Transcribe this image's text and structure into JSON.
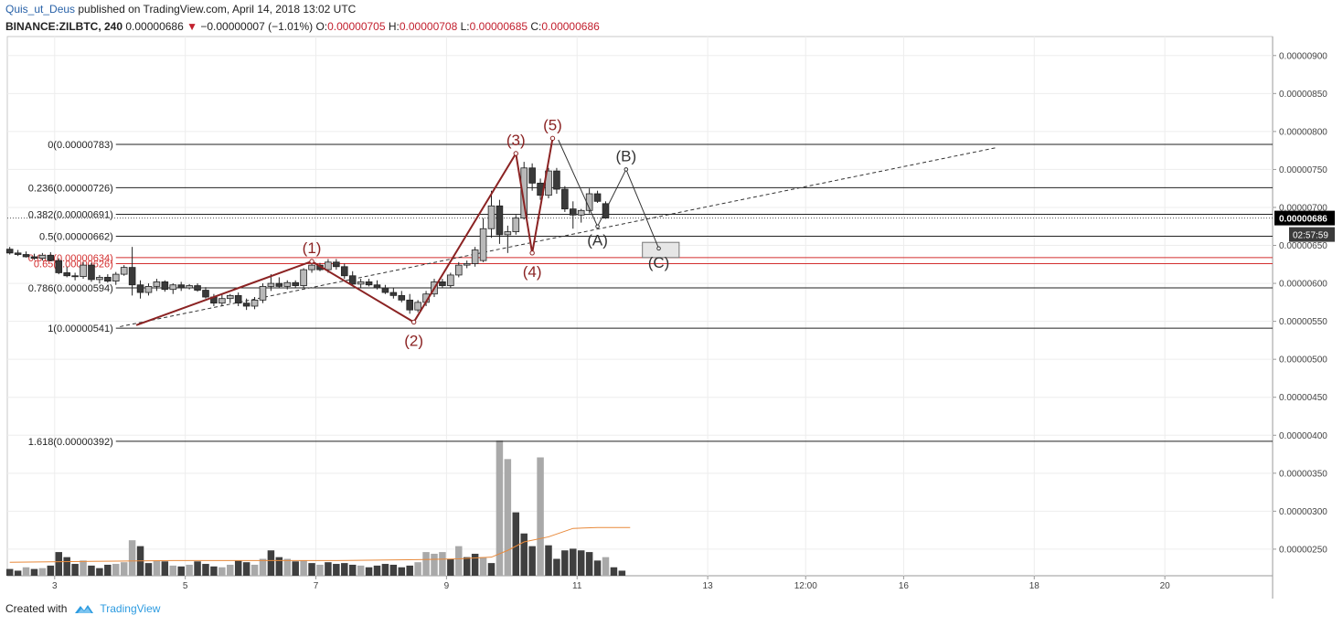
{
  "header": {
    "user": "Quis_ut_Deus",
    "published_text": " published on TradingView.com, April 14, 2018 13:02 UTC",
    "symbol": "BINANCE:ZILBTC, 240",
    "last": "0.00000686",
    "change": "−0.00000007 (−1.01%)",
    "o_label": "O:",
    "o": "0.00000705",
    "h_label": "H:",
    "h": "0.00000708",
    "l_label": "L:",
    "l": "0.00000685",
    "c_label": "C:",
    "c": "0.00000686"
  },
  "footer": {
    "created_with": "Created with",
    "brand": "TradingView"
  },
  "colors": {
    "up": "#b9b9b9",
    "down": "#3a3a3a",
    "wave": "#8b2323",
    "fib_red": "#d32f2f",
    "ma": "#e8893a",
    "price_badge": "#000000",
    "timer_badge": "#3b3b3b"
  },
  "chart_data": {
    "type": "candlestick",
    "timeframe": "240",
    "y_range": [
      2.15e-06,
      9.25e-06
    ],
    "x_range": [
      -0.3,
      154.7
    ],
    "y_ticks": [
      "0.00000900",
      "0.00000850",
      "0.00000800",
      "0.00000750",
      "0.00000700",
      "0.00000650",
      "0.00000600",
      "0.00000550",
      "0.00000500",
      "0.00000450",
      "0.00000400",
      "0.00000350",
      "0.00000300",
      "0.00000250"
    ],
    "x_ticks": [
      {
        "label": "3",
        "i": 5.5
      },
      {
        "label": "5",
        "i": 21.5
      },
      {
        "label": "7",
        "i": 37.5
      },
      {
        "label": "9",
        "i": 53.5
      },
      {
        "label": "11",
        "i": 69.5
      },
      {
        "label": "13",
        "i": 85.5
      },
      {
        "label": "12:00",
        "i": 97.5
      },
      {
        "label": "16",
        "i": 109.5
      },
      {
        "label": "18",
        "i": 125.5
      },
      {
        "label": "20",
        "i": 141.5
      }
    ],
    "last_price": "0.00000686",
    "countdown": "02:57:59",
    "candles": [
      [
        6.45e-06,
        6.48e-06,
        6.38e-06,
        6.4e-06
      ],
      [
        6.4e-06,
        6.44e-06,
        6.36e-06,
        6.38e-06
      ],
      [
        6.38e-06,
        6.42e-06,
        6.34e-06,
        6.35e-06
      ],
      [
        6.35e-06,
        6.39e-06,
        6.31e-06,
        6.33e-06
      ],
      [
        6.33e-06,
        6.4e-06,
        6.3e-06,
        6.37e-06
      ],
      [
        6.37e-06,
        6.41e-06,
        6.29e-06,
        6.3e-06
      ],
      [
        6.3e-06,
        6.33e-06,
        6.12e-06,
        6.14e-06
      ],
      [
        6.14e-06,
        6.22e-06,
        6.08e-06,
        6.1e-06
      ],
      [
        6.1e-06,
        6.14e-06,
        6.04e-06,
        6.09e-06
      ],
      [
        6.09e-06,
        6.28e-06,
        6.06e-06,
        6.24e-06
      ],
      [
        6.24e-06,
        6.27e-06,
        6.02e-06,
        6.05e-06
      ],
      [
        6.05e-06,
        6.11e-06,
        6e-06,
        6.08e-06
      ],
      [
        6.08e-06,
        6.12e-06,
        6.01e-06,
        6.03e-06
      ],
      [
        6.03e-06,
        6.15e-06,
        5.98e-06,
        6.12e-06
      ],
      [
        6.12e-06,
        6.24e-06,
        6.1e-06,
        6.21e-06
      ],
      [
        6.21e-06,
        6.48e-06,
        5.84e-06,
        5.98e-06
      ],
      [
        5.98e-06,
        6.04e-06,
        5.8e-06,
        5.88e-06
      ],
      [
        5.88e-06,
        6e-06,
        5.84e-06,
        5.96e-06
      ],
      [
        5.96e-06,
        6.06e-06,
        5.9e-06,
        6.02e-06
      ],
      [
        6.02e-06,
        6.04e-06,
        5.89e-06,
        5.92e-06
      ],
      [
        5.92e-06,
        6e-06,
        5.86e-06,
        5.98e-06
      ],
      [
        5.98e-06,
        6.02e-06,
        5.9e-06,
        5.94e-06
      ],
      [
        5.94e-06,
        5.99e-06,
        5.92e-06,
        5.97e-06
      ],
      [
        5.97e-06,
        6e-06,
        5.89e-06,
        5.91e-06
      ],
      [
        5.91e-06,
        5.95e-06,
        5.8e-06,
        5.82e-06
      ],
      [
        5.82e-06,
        5.86e-06,
        5.7e-06,
        5.74e-06
      ],
      [
        5.74e-06,
        5.85e-06,
        5.7e-06,
        5.8e-06
      ],
      [
        5.8e-06,
        5.86e-06,
        5.74e-06,
        5.84e-06
      ],
      [
        5.84e-06,
        5.88e-06,
        5.7e-06,
        5.74e-06
      ],
      [
        5.74e-06,
        5.8e-06,
        5.65e-06,
        5.7e-06
      ],
      [
        5.7e-06,
        5.82e-06,
        5.66e-06,
        5.78e-06
      ],
      [
        5.78e-06,
        6e-06,
        5.74e-06,
        5.96e-06
      ],
      [
        5.96e-06,
        6.12e-06,
        5.9e-06,
        6e-06
      ],
      [
        6e-06,
        6.08e-06,
        5.94e-06,
        5.96e-06
      ],
      [
        5.96e-06,
        6.04e-06,
        5.92e-06,
        6.01e-06
      ],
      [
        6.01e-06,
        6.04e-06,
        5.94e-06,
        5.97e-06
      ],
      [
        5.97e-06,
        6.2e-06,
        5.94e-06,
        6.18e-06
      ],
      [
        6.18e-06,
        6.28e-06,
        6.14e-06,
        6.24e-06
      ],
      [
        6.24e-06,
        6.27e-06,
        6.16e-06,
        6.18e-06
      ],
      [
        6.18e-06,
        6.32e-06,
        6.14e-06,
        6.28e-06
      ],
      [
        6.28e-06,
        6.32e-06,
        6.18e-06,
        6.22e-06
      ],
      [
        6.22e-06,
        6.26e-06,
        6.06e-06,
        6.1e-06
      ],
      [
        6.1e-06,
        6.16e-06,
        5.96e-06,
        5.99e-06
      ],
      [
        5.99e-06,
        6.06e-06,
        5.94e-06,
        6.02e-06
      ],
      [
        6.02e-06,
        6.06e-06,
        5.96e-06,
        5.98e-06
      ],
      [
        5.98e-06,
        6.04e-06,
        5.92e-06,
        5.94e-06
      ],
      [
        5.94e-06,
        5.98e-06,
        5.86e-06,
        5.88e-06
      ],
      [
        5.88e-06,
        5.94e-06,
        5.8e-06,
        5.84e-06
      ],
      [
        5.84e-06,
        5.9e-06,
        5.75e-06,
        5.78e-06
      ],
      [
        5.78e-06,
        5.86e-06,
        5.6e-06,
        5.65e-06
      ],
      [
        5.65e-06,
        5.78e-06,
        5.62e-06,
        5.75e-06
      ],
      [
        5.75e-06,
        5.9e-06,
        5.7e-06,
        5.86e-06
      ],
      [
        5.86e-06,
        6.06e-06,
        5.82e-06,
        6.02e-06
      ],
      [
        6.02e-06,
        6.06e-06,
        5.94e-06,
        5.97e-06
      ],
      [
        5.97e-06,
        6.14e-06,
        5.94e-06,
        6.11e-06
      ],
      [
        6.11e-06,
        6.28e-06,
        6.08e-06,
        6.24e-06
      ],
      [
        6.24e-06,
        6.3e-06,
        6.2e-06,
        6.26e-06
      ],
      [
        6.26e-06,
        6.48e-06,
        6.22e-06,
        6.44e-06
      ],
      [
        6.3e-06,
        6.86e-06,
        6.28e-06,
        6.72e-06
      ],
      [
        6.72e-06,
        7.22e-06,
        6.6e-06,
        7.02e-06
      ],
      [
        7.02e-06,
        7.1e-06,
        6.52e-06,
        6.64e-06
      ],
      [
        6.64e-06,
        6.76e-06,
        6.4e-06,
        6.68e-06
      ],
      [
        6.68e-06,
        6.9e-06,
        6.64e-06,
        6.86e-06
      ],
      [
        6.86e-06,
        7.6e-06,
        6.84e-06,
        7.52e-06
      ],
      [
        7.52e-06,
        7.58e-06,
        7.22e-06,
        7.32e-06
      ],
      [
        7.32e-06,
        7.38e-06,
        7.1e-06,
        7.16e-06
      ],
      [
        7.16e-06,
        7.52e-06,
        7.12e-06,
        7.48e-06
      ],
      [
        7.48e-06,
        7.52e-06,
        7.18e-06,
        7.24e-06
      ],
      [
        7.24e-06,
        7.28e-06,
        6.94e-06,
        6.98e-06
      ],
      [
        6.98e-06,
        7.08e-06,
        6.72e-06,
        6.9e-06
      ],
      [
        6.9e-06,
        6.98e-06,
        6.8e-06,
        6.96e-06
      ],
      [
        6.96e-06,
        7.25e-06,
        6.92e-06,
        7.18e-06
      ],
      [
        7.18e-06,
        7.22e-06,
        7.06e-06,
        7.08e-06
      ],
      [
        7.05e-06,
        7.08e-06,
        6.85e-06,
        6.86e-06
      ]
    ],
    "volume": [
      {
        "v": 8,
        "up": false
      },
      {
        "v": 6,
        "up": false
      },
      {
        "v": 10,
        "up": true
      },
      {
        "v": 8,
        "up": false
      },
      {
        "v": 9,
        "up": true
      },
      {
        "v": 12,
        "up": false
      },
      {
        "v": 28,
        "up": false
      },
      {
        "v": 22,
        "up": false
      },
      {
        "v": 14,
        "up": false
      },
      {
        "v": 18,
        "up": true
      },
      {
        "v": 12,
        "up": false
      },
      {
        "v": 9,
        "up": false
      },
      {
        "v": 13,
        "up": false
      },
      {
        "v": 14,
        "up": true
      },
      {
        "v": 16,
        "up": true
      },
      {
        "v": 42,
        "up": true
      },
      {
        "v": 35,
        "up": false
      },
      {
        "v": 15,
        "up": false
      },
      {
        "v": 18,
        "up": true
      },
      {
        "v": 17,
        "up": false
      },
      {
        "v": 12,
        "up": true
      },
      {
        "v": 11,
        "up": false
      },
      {
        "v": 13,
        "up": true
      },
      {
        "v": 17,
        "up": false
      },
      {
        "v": 14,
        "up": false
      },
      {
        "v": 11,
        "up": false
      },
      {
        "v": 10,
        "up": true
      },
      {
        "v": 13,
        "up": true
      },
      {
        "v": 18,
        "up": false
      },
      {
        "v": 16,
        "up": false
      },
      {
        "v": 13,
        "up": true
      },
      {
        "v": 20,
        "up": true
      },
      {
        "v": 30,
        "up": false
      },
      {
        "v": 22,
        "up": false
      },
      {
        "v": 20,
        "up": true
      },
      {
        "v": 17,
        "up": false
      },
      {
        "v": 18,
        "up": true
      },
      {
        "v": 15,
        "up": false
      },
      {
        "v": 13,
        "up": true
      },
      {
        "v": 16,
        "up": false
      },
      {
        "v": 14,
        "up": false
      },
      {
        "v": 15,
        "up": false
      },
      {
        "v": 13,
        "up": false
      },
      {
        "v": 12,
        "up": true
      },
      {
        "v": 10,
        "up": false
      },
      {
        "v": 12,
        "up": false
      },
      {
        "v": 14,
        "up": false
      },
      {
        "v": 13,
        "up": false
      },
      {
        "v": 10,
        "up": false
      },
      {
        "v": 12,
        "up": false
      },
      {
        "v": 16,
        "up": true
      },
      {
        "v": 28,
        "up": true
      },
      {
        "v": 26,
        "up": true
      },
      {
        "v": 28,
        "up": true
      },
      {
        "v": 20,
        "up": false
      },
      {
        "v": 35,
        "up": true
      },
      {
        "v": 22,
        "up": false
      },
      {
        "v": 26,
        "up": false
      },
      {
        "v": 22,
        "up": true
      },
      {
        "v": 15,
        "up": false
      },
      {
        "v": 160,
        "up": true
      },
      {
        "v": 138,
        "up": true
      },
      {
        "v": 75,
        "up": false
      },
      {
        "v": 50,
        "up": false
      },
      {
        "v": 35,
        "up": false
      },
      {
        "v": 140,
        "up": true
      },
      {
        "v": 36,
        "up": false
      },
      {
        "v": 20,
        "up": false
      },
      {
        "v": 30,
        "up": false
      },
      {
        "v": 32,
        "up": false
      },
      {
        "v": 30,
        "up": false
      },
      {
        "v": 28,
        "up": false
      },
      {
        "v": 18,
        "up": false
      },
      {
        "v": 22,
        "up": true
      },
      {
        "v": 10,
        "up": false
      },
      {
        "v": 6,
        "up": false
      }
    ],
    "volume_ma": [
      [
        0,
        16
      ],
      [
        10,
        17
      ],
      [
        20,
        18
      ],
      [
        30,
        18
      ],
      [
        40,
        18
      ],
      [
        50,
        19
      ],
      [
        55,
        20
      ],
      [
        59,
        22
      ],
      [
        61,
        30
      ],
      [
        63,
        40
      ],
      [
        66,
        46
      ],
      [
        69,
        56
      ],
      [
        72,
        57
      ],
      [
        76,
        57
      ]
    ],
    "fib_levels": [
      {
        "label": "0(0.00000783)",
        "price": 7.83e-06,
        "color": "#222222"
      },
      {
        "label": "0.236(0.00000726)",
        "price": 7.26e-06,
        "color": "#222222"
      },
      {
        "label": "0.382(0.00000691)",
        "price": 6.91e-06,
        "color": "#222222"
      },
      {
        "label": "0.5(0.00000662)",
        "price": 6.62e-06,
        "color": "#222222"
      },
      {
        "label": "0.618(0.00000634)",
        "price": 6.34e-06,
        "color": "#d32f2f"
      },
      {
        "label": "0.65(0.00000626)",
        "price": 6.26e-06,
        "color": "#d32f2f"
      },
      {
        "label": "0.786(0.00000594)",
        "price": 5.94e-06,
        "color": "#222222"
      },
      {
        "label": "1(0.00000541)",
        "price": 5.41e-06,
        "color": "#222222"
      },
      {
        "label": "1.618(0.00000392)",
        "price": 3.92e-06,
        "color": "#222222"
      }
    ],
    "wave_points": [
      {
        "label": "",
        "i": 15.5,
        "p": 5.45e-06
      },
      {
        "label": "(1)",
        "i": 37,
        "p": 6.29e-06
      },
      {
        "label": "(2)",
        "i": 49.5,
        "p": 5.49e-06
      },
      {
        "label": "(3)",
        "i": 62,
        "p": 7.71e-06
      },
      {
        "label": "(4)",
        "i": 64,
        "p": 6.4e-06
      },
      {
        "label": "(5)",
        "i": 66.5,
        "p": 7.91e-06
      }
    ],
    "corrective_points": [
      {
        "label": "",
        "i": 67.2,
        "p": 7.89e-06
      },
      {
        "label": "(A)",
        "i": 72,
        "p": 6.75e-06
      },
      {
        "label": "(B)",
        "i": 75.5,
        "p": 7.5e-06
      },
      {
        "label": "(C)",
        "i": 79.5,
        "p": 6.46e-06
      }
    ],
    "trendline": [
      [
        13.5,
        5.43e-06
      ],
      [
        121,
        7.79e-06
      ]
    ],
    "target_box": [
      [
        77.5,
        6.54e-06
      ],
      [
        82,
        6.34e-06
      ]
    ]
  }
}
